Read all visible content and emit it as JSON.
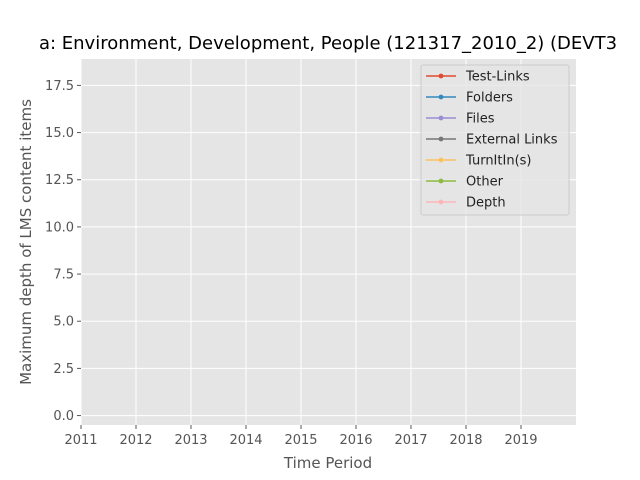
{
  "chart_data": {
    "type": "line",
    "title": "a: Environment, Development, People (121317_2010_2) (DEVT3",
    "xlabel": "Time Period",
    "ylabel": "Maximum depth of LMS content items",
    "xlim": [
      2011,
      2020
    ],
    "ylim": [
      -0.5,
      18.9
    ],
    "x_ticks": [
      "2011",
      "2012",
      "2013",
      "2014",
      "2015",
      "2016",
      "2017",
      "2018",
      "2019"
    ],
    "y_ticks": [
      "0.0",
      "2.5",
      "5.0",
      "7.5",
      "10.0",
      "12.5",
      "15.0",
      "17.5"
    ],
    "grid": true,
    "legend_position": "top-right",
    "series": [
      {
        "name": "Test-Links",
        "color": "#E24A33",
        "values": []
      },
      {
        "name": "Folders",
        "color": "#348ABD",
        "values": []
      },
      {
        "name": "Files",
        "color": "#988ED5",
        "values": []
      },
      {
        "name": "External Links",
        "color": "#777777",
        "values": []
      },
      {
        "name": "TurnItIn(s)",
        "color": "#FBC15E",
        "values": []
      },
      {
        "name": "Other",
        "color": "#8EBA42",
        "values": []
      },
      {
        "name": "Depth",
        "color": "#FFB5B8",
        "values": []
      }
    ],
    "colors": {
      "plot_background": "#E5E5E5",
      "grid": "#FFFFFF"
    }
  }
}
